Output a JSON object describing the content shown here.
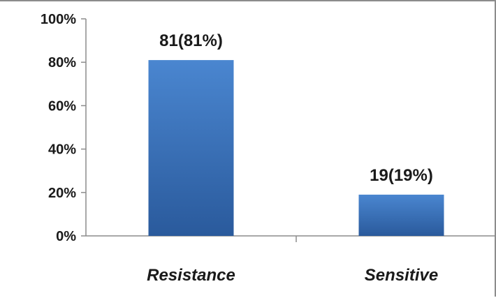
{
  "chart_data": {
    "type": "bar",
    "categories": [
      "Resistance",
      "Sensitive"
    ],
    "values": [
      81,
      19
    ],
    "data_labels": [
      "81(81%)",
      "19(19%)"
    ],
    "yticks": [
      "0%",
      "20%",
      "40%",
      "60%",
      "80%",
      "100%"
    ],
    "ytick_values": [
      0,
      20,
      40,
      60,
      80,
      100
    ],
    "ylim": [
      0,
      100
    ],
    "title": "",
    "xlabel": "",
    "ylabel": "",
    "grid": false,
    "legend": "none",
    "bar_color_top": "#4a86d0",
    "bar_color_bottom": "#2a5a9c"
  }
}
